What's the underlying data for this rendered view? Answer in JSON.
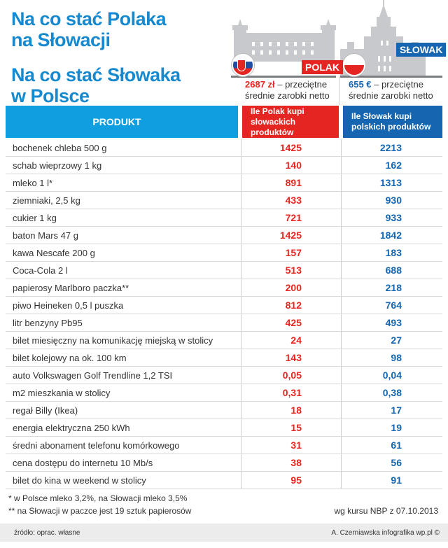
{
  "titles": {
    "line1": "Na co stać Polaka",
    "line2": "na Słowacji",
    "line3": "Na co stać Słowaka",
    "line4": "w Polsce"
  },
  "tags": {
    "polak": "POLAK",
    "slowak": "SŁOWAK"
  },
  "income": {
    "pl_amount": "2687 zł",
    "pl_text1": " – przeciętne",
    "pl_text2": "średnie zarobki netto",
    "sk_amount": "655 €",
    "sk_text1": " – przeciętne",
    "sk_text2": "średnie zarobki netto"
  },
  "table": {
    "headers": {
      "product": "PRODUKT",
      "polak_line1": "Ile Polak kupi",
      "polak_line2": "słowackich produktów",
      "slowak_line1": "Ile Słowak kupi",
      "slowak_line2": "polskich produktów"
    },
    "rows": [
      {
        "product": "bochenek chleba 500 g",
        "polak": "1425",
        "slowak": "2213"
      },
      {
        "product": "schab wieprzowy 1 kg",
        "polak": "140",
        "slowak": "162"
      },
      {
        "product": "mleko 1 l*",
        "polak": "891",
        "slowak": "1313"
      },
      {
        "product": "ziemniaki, 2,5 kg",
        "polak": "433",
        "slowak": "930"
      },
      {
        "product": "cukier 1 kg",
        "polak": "721",
        "slowak": "933"
      },
      {
        "product": "baton Mars 47 g",
        "polak": "1425",
        "slowak": "1842"
      },
      {
        "product": "kawa Nescafe 200 g",
        "polak": "157",
        "slowak": "183"
      },
      {
        "product": "Coca-Cola 2 l",
        "polak": "513",
        "slowak": "688"
      },
      {
        "product": "papierosy Marlboro paczka**",
        "polak": "200",
        "slowak": "218"
      },
      {
        "product": "piwo Heineken 0,5 l puszka",
        "polak": "812",
        "slowak": "764"
      },
      {
        "product": "litr benzyny Pb95",
        "polak": "425",
        "slowak": "493"
      },
      {
        "product": "bilet miesięczny na komunikację miejską  w stolicy",
        "polak": "24",
        "slowak": "27"
      },
      {
        "product": "bilet kolejowy na ok. 100 km",
        "polak": "143",
        "slowak": "98"
      },
      {
        "product": "auto Volkswagen Golf Trendline 1,2 TSI",
        "polak": "0,05",
        "slowak": "0,04"
      },
      {
        "product": "m2 mieszkania w stolicy",
        "polak": "0,31",
        "slowak": "0,38"
      },
      {
        "product": "regał Billy (Ikea)",
        "polak": "18",
        "slowak": "17"
      },
      {
        "product": "energia elektryczna 250 kWh",
        "polak": "15",
        "slowak": "19"
      },
      {
        "product": "średni abonament telefonu komórkowego",
        "polak": "31",
        "slowak": "61"
      },
      {
        "product": "cena dostępu do internetu 10 Mb/s",
        "polak": "38",
        "slowak": "56"
      },
      {
        "product": "bilet do kina w weekend w stolicy",
        "polak": "95",
        "slowak": "91"
      }
    ]
  },
  "notes": {
    "note1": "* w Polsce mleko 3,2%, na Słowacji mleko 3,5%",
    "note2": "** na Słowacji w paczce jest 19 sztuk papierosów",
    "kurs": "wg kursu NBP z 07.10.2013"
  },
  "footer": {
    "source": "źródło: oprac. własne",
    "credit": "A. Czerniawska infografika wp.pl ©"
  },
  "colors": {
    "title_blue": "#1689cf",
    "header_blue": "#0f9fe0",
    "polak_red": "#e52521",
    "slowak_blue": "#1565b0"
  }
}
